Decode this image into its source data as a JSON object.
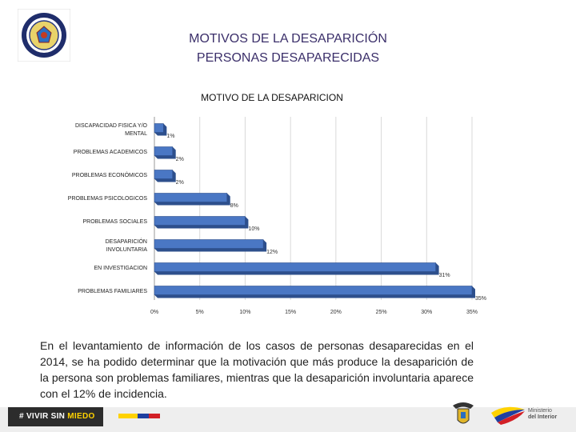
{
  "header": {
    "title_line1": "MOTIVOS DE LA DESAPARICIÓN",
    "title_line2": "PERSONAS DESAPARECIDAS"
  },
  "chart_data": {
    "type": "bar",
    "orientation": "horizontal",
    "title": "MOTIVO DE LA DESAPARICION",
    "categories": [
      [
        "DISCAPACIDAD FISICA Y/O",
        "MENTAL"
      ],
      [
        "PROBLEMAS ACADEMICOS"
      ],
      [
        "PROBLEMAS ECONÓMICOS"
      ],
      [
        "PROBLEMAS PSICOLOGICOS"
      ],
      [
        "PROBLEMAS SOCIALES"
      ],
      [
        "DESAPARICIÓN",
        "INVOLUNTARIA"
      ],
      [
        "EN INVESTIGACION"
      ],
      [
        "PROBLEMAS FAMILIARES"
      ]
    ],
    "values": [
      1,
      2,
      2,
      8,
      10,
      12,
      31,
      35
    ],
    "value_labels": [
      "1%",
      "2%",
      "2%",
      "8%",
      "10%",
      "12%",
      "31%",
      "35%"
    ],
    "xlim": [
      0,
      35
    ],
    "xticks": [
      0,
      5,
      10,
      15,
      20,
      25,
      30,
      35
    ],
    "xtick_labels": [
      "0%",
      "5%",
      "10%",
      "15%",
      "20%",
      "25%",
      "30%",
      "35%"
    ],
    "grid": true,
    "bar_color": "#4a77c4",
    "bar_side_color": "#2d4f8c"
  },
  "description": {
    "text": "En el levantamiento de información de los casos de personas desaparecidas en el 2014, se ha podido determinar que la motivación que más produce la desaparición de la persona son problemas familiares, mientras que la desaparición involuntaria aparece con el 12% de incidencia."
  },
  "footer": {
    "slogan_prefix": "# VIVIR SIN ",
    "slogan_accent": "MIEDO",
    "ministry_line1": "Ministerio",
    "ministry_line2": "del Interior",
    "flag_colors": [
      "#ffd200",
      "#1f3fa0",
      "#d21f26"
    ]
  }
}
